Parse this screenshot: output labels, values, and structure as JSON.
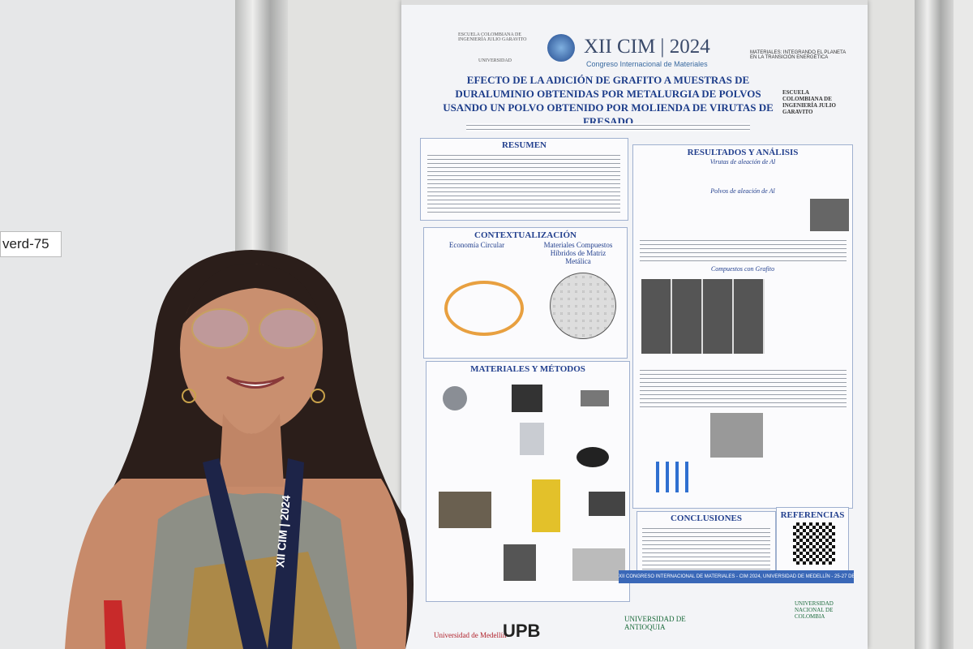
{
  "wall_label": "verd-75",
  "poster": {
    "header": {
      "school": "ESCUELA COLOMBIANA DE INGENIERÍA JULIO GARAVITO",
      "school_sub": "UNIVERSIDAD",
      "event": "XII CIM | 2024",
      "event_sub": "Congreso Internacional de Materiales",
      "theme": "MATERIALES: INTEGRANDO EL PLANETA EN LA TRANSICIÓN ENERGÉTICA"
    },
    "title": "EFECTO DE LA ADICIÓN DE GRAFITO A MUESTRAS DE DURALUMINIO OBTENIDAS POR METALURGIA DE POLVOS USANDO UN POLVO OBTENIDO POR MOLIENDA DE VIRUTAS DE FRESADO",
    "sections": {
      "resumen": "RESUMEN",
      "contextualizacion": {
        "heading": "CONTEXTUALIZACIÓN",
        "left": "Economía Circular",
        "right": "Materiales Compuestos Híbridos de Matriz Metálica"
      },
      "materiales": "MATERIALES Y MÉTODOS",
      "resultados": {
        "heading": "RESULTADOS Y ANÁLISIS",
        "sub1": "Virutas de aleación de Al",
        "sub2": "Polvos de aleación de Al",
        "sub3": "Compuestos con Grafito"
      },
      "conclusiones": "CONCLUSIONES",
      "referencias": "REFERENCIAS"
    },
    "footer": "XII CONGRESO INTERNACIONAL DE MATERIALES - CIM 2024, UNIVERSIDAD DE MEDELLÍN - 25-27 DE SEPTIEMBRE 2024",
    "logos": [
      "Universidad de Medellín",
      "UPB",
      "UNIVERSIDAD DE ANTIOQUIA",
      "UNIVERSIDAD NACIONAL DE COLOMBIA"
    ]
  },
  "lanyard": "XII CIM | 2024"
}
